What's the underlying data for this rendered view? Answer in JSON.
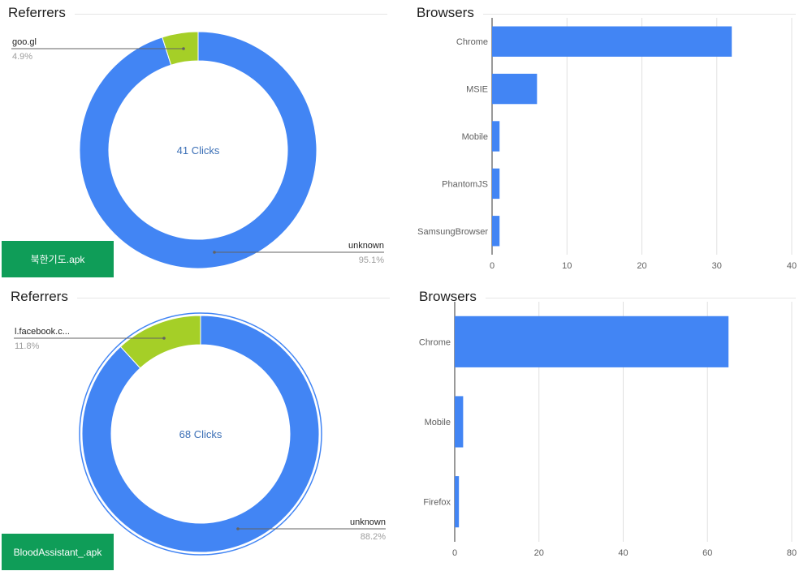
{
  "panels": {
    "ref1": {
      "title": "Referrers",
      "center_text": "41 Clicks",
      "app_button": "북한기도.apk"
    },
    "br1": {
      "title": "Browsers"
    },
    "ref2": {
      "title": "Referrers",
      "center_text": "68 Clicks",
      "app_button": "BloodAssistant_.apk"
    },
    "br2": {
      "title": "Browsers"
    }
  },
  "colors": {
    "primary": "#4285f4",
    "secondary": "#a5cf27",
    "app_button": "#0f9d58",
    "grid": "#e0e0e0",
    "muted": "#9e9e9e"
  },
  "chart_data": [
    {
      "type": "pie",
      "title": "Referrers",
      "center_text": "41 Clicks",
      "slices": [
        {
          "label": "unknown",
          "value": 95.1,
          "display": "95.1%"
        },
        {
          "label": "goo.gl",
          "value": 4.9,
          "display": "4.9%"
        }
      ]
    },
    {
      "type": "bar",
      "orientation": "horizontal",
      "title": "Browsers",
      "categories": [
        "Chrome",
        "MSIE",
        "Mobile",
        "PhantomJS",
        "SamsungBrowser"
      ],
      "values": [
        32,
        6,
        1,
        1,
        1
      ],
      "xlim": [
        0,
        40
      ],
      "ticks": [
        0,
        10,
        20,
        30,
        40
      ],
      "grid": true
    },
    {
      "type": "pie",
      "title": "Referrers",
      "center_text": "68 Clicks",
      "slices": [
        {
          "label": "unknown",
          "value": 88.2,
          "display": "88.2%"
        },
        {
          "label": "l.facebook.c...",
          "value": 11.8,
          "display": "11.8%"
        }
      ]
    },
    {
      "type": "bar",
      "orientation": "horizontal",
      "title": "Browsers",
      "categories": [
        "Chrome",
        "Mobile",
        "Firefox"
      ],
      "values": [
        65,
        2,
        1
      ],
      "xlim": [
        0,
        80
      ],
      "ticks": [
        0,
        20,
        40,
        60,
        80
      ],
      "grid": true
    }
  ]
}
